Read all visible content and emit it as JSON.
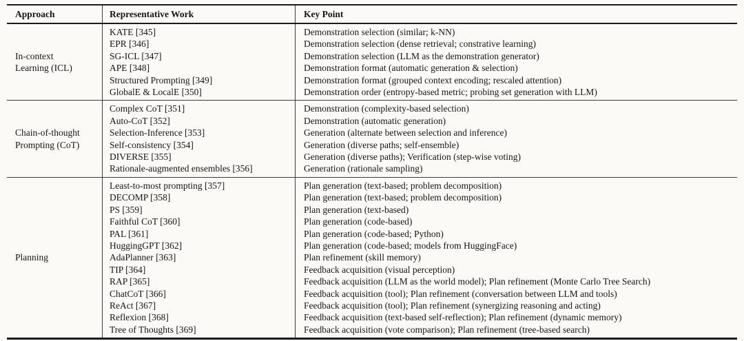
{
  "table": {
    "headers": {
      "approach": "Approach",
      "work": "Representative Work",
      "key_point": "Key Point"
    },
    "sections": [
      {
        "approach_lines": [
          "In-context",
          "Learning (ICL)"
        ],
        "rows": [
          {
            "work": "KATE [345]",
            "key_point": "Demonstration selection (similar; k-NN)"
          },
          {
            "work": "EPR [346]",
            "key_point": "Demonstration selection (dense retrieval; constrative learning)"
          },
          {
            "work": "SG-ICL [347]",
            "key_point": "Demonstration selection (LLM as the demonstration generator)"
          },
          {
            "work": "APE [348]",
            "key_point": "Demonstration format (automatic generation & selection)"
          },
          {
            "work": "Structured Prompting [349]",
            "key_point": "Demonstration format (grouped context encoding; rescaled attention)"
          },
          {
            "work": "GlobalE & LocalE [350]",
            "key_point": "Demonstration order (entropy-based metric; probing set generation with LLM)"
          }
        ]
      },
      {
        "approach_lines": [
          "Chain-of-thought",
          "Prompting (CoT)"
        ],
        "rows": [
          {
            "work": "Complex CoT [351]",
            "key_point": "Demonstration (complexity-based selection)"
          },
          {
            "work": "Auto-CoT [352]",
            "key_point": "Demonstration (automatic generation)"
          },
          {
            "work": "Selection-Inference [353]",
            "key_point": "Generation (alternate between selection and inference)"
          },
          {
            "work": "Self-consistency [354]",
            "key_point": "Generation (diverse paths; self-ensemble)"
          },
          {
            "work": "DIVERSE [355]",
            "key_point": "Generation (diverse paths); Verification (step-wise voting)"
          },
          {
            "work": "Rationale-augmented ensembles [356]",
            "key_point": "Generation (rationale sampling)"
          }
        ]
      },
      {
        "approach_lines": [
          "Planning"
        ],
        "rows": [
          {
            "work": "Least-to-most prompting [357]",
            "key_point": "Plan generation (text-based; problem decomposition)"
          },
          {
            "work": "DECOMP [358]",
            "key_point": "Plan generation (text-based; problem decomposition)"
          },
          {
            "work": "PS [359]",
            "key_point": "Plan generation (text-based)"
          },
          {
            "work": "Faithful CoT [360]",
            "key_point": "Plan generation (code-based)"
          },
          {
            "work": "PAL [361]",
            "key_point": "Plan generation (code-based; Python)"
          },
          {
            "work": "HuggingGPT [362]",
            "key_point": "Plan generation (code-based; models from HuggingFace)"
          },
          {
            "work": "AdaPlanner [363]",
            "key_point": "Plan refinement (skill memory)"
          },
          {
            "work": "TIP [364]",
            "key_point": "Feedback acquisition (visual perception)"
          },
          {
            "work": "RAP [365]",
            "key_point": "Feedback acquisition (LLM as the world model); Plan refinement (Monte Carlo Tree Search)"
          },
          {
            "work": "ChatCoT [366]",
            "key_point": "Feedback acquisition (tool); Plan refinement (conversation between LLM and tools)"
          },
          {
            "work": "ReAct [367]",
            "key_point": "Feedback acquisition (tool); Plan refinement (synergizing reasoning and acting)"
          },
          {
            "work": "Reflexion [368]",
            "key_point": "Feedback acquisition (text-based self-reflection); Plan refinement (dynamic memory)"
          },
          {
            "work": "Tree of Thoughts [369]",
            "key_point": "Feedback acquisition (vote comparison); Plan refinement (tree-based search)"
          }
        ]
      }
    ]
  }
}
